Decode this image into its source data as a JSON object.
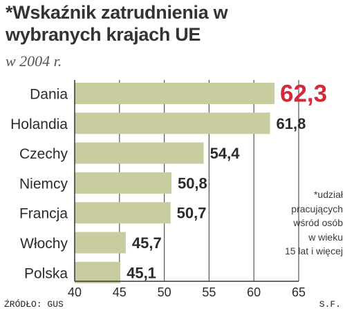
{
  "title": "*Wskaźnik zatrudnienia w wybranych krajach UE",
  "subtitle": "w 2004 r.",
  "note": [
    "*udział",
    "pracujących",
    "wśród osób",
    "w wieku",
    "15 lat i więcej"
  ],
  "source": "ŹRÓDŁO: GUS",
  "author": "S.F.",
  "colors": {
    "bar": "#c8cc9e",
    "highlight": "#d2293c",
    "label": "#2b2b2b",
    "grid": "#555555"
  },
  "chart_data": {
    "type": "bar",
    "orientation": "horizontal",
    "categories": [
      "Dania",
      "Holandia",
      "Czechy",
      "Niemcy",
      "Francja",
      "Włochy",
      "Polska"
    ],
    "values": [
      62.3,
      61.8,
      54.4,
      50.8,
      50.7,
      45.7,
      45.1
    ],
    "value_labels": [
      "62,3",
      "61,8",
      "54,4",
      "50,8",
      "50,7",
      "45,7",
      "45,1"
    ],
    "highlight_index": 0,
    "xlim": [
      40,
      65
    ],
    "xticks": [
      40,
      45,
      50,
      55,
      60,
      65
    ],
    "grid": true
  }
}
